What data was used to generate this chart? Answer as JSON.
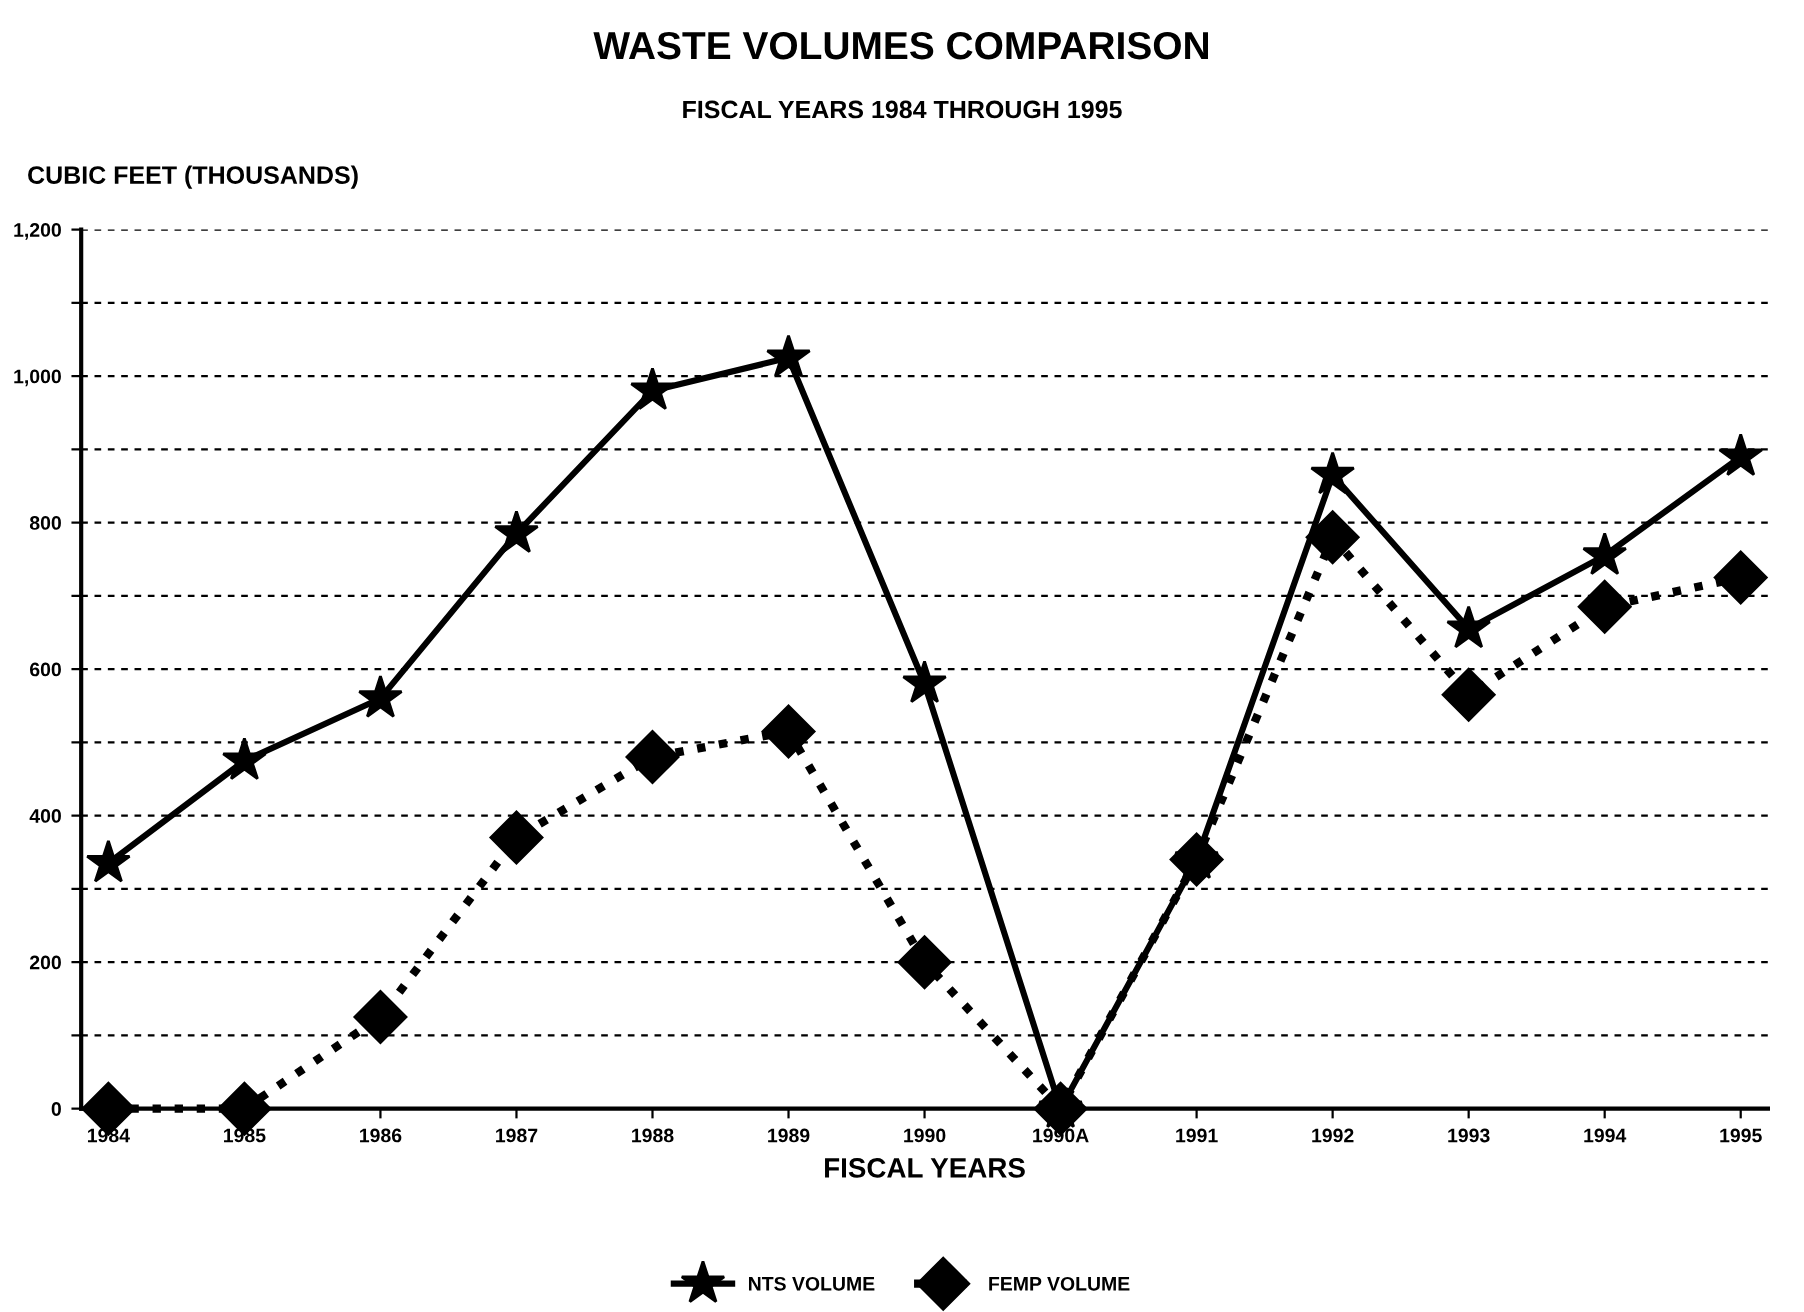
{
  "chart_data": {
    "type": "line",
    "title": "WASTE VOLUMES COMPARISON",
    "subtitle": "FISCAL YEARS 1984 THROUGH 1995",
    "ylabel": "CUBIC FEET (THOUSANDS)",
    "xlabel": "FISCAL YEARS",
    "categories": [
      "1984",
      "1985",
      "1986",
      "1987",
      "1988",
      "1989",
      "1990",
      "1990A",
      "1991",
      "1992",
      "1993",
      "1994",
      "1995"
    ],
    "series": [
      {
        "name": "NTS VOLUME",
        "color": "#000000",
        "marker": "star",
        "line_style": "solid",
        "values": [
          335,
          475,
          560,
          785,
          980,
          1025,
          580,
          0,
          340,
          865,
          655,
          755,
          890
        ]
      },
      {
        "name": "FEMP VOLUME",
        "color": "#000000",
        "marker": "diamond",
        "line_style": "dotted",
        "values": [
          0,
          0,
          125,
          370,
          480,
          515,
          200,
          0,
          340,
          780,
          565,
          685,
          725
        ]
      }
    ],
    "ylim": [
      0,
      1200
    ],
    "yticks": [
      0,
      {
        "value": 100,
        "label": null
      },
      200,
      {
        "value": 300,
        "label": null
      },
      400,
      {
        "value": 500,
        "label": null
      },
      600,
      {
        "value": 700,
        "label": null
      },
      800,
      {
        "value": 900,
        "label": null
      },
      {
        "value": 1000,
        "label": "1,000"
      },
      {
        "value": 1100,
        "label": null
      },
      {
        "value": 1200,
        "label": "1,200"
      }
    ],
    "grid": "y",
    "legend": "bottom"
  }
}
